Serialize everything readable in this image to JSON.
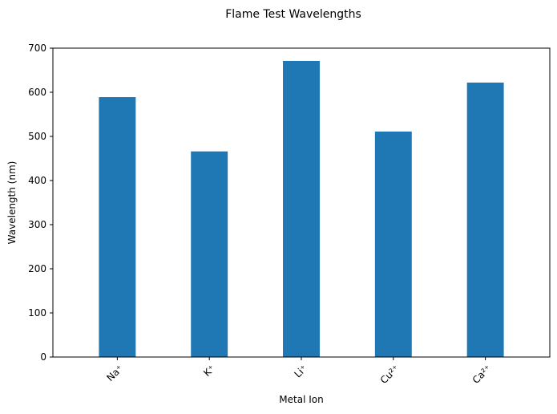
{
  "chart_data": {
    "type": "bar",
    "title": "Flame Test Wavelengths",
    "xlabel": "Metal Ion",
    "ylabel": "Wavelength (nm)",
    "categories": [
      "Na⁺",
      "K⁺",
      "Li⁺",
      "Cu²⁺",
      "Ca²⁺"
    ],
    "values": [
      589,
      466,
      671,
      511,
      622
    ],
    "ylim": [
      0,
      700
    ],
    "yticks": [
      0,
      100,
      200,
      300,
      400,
      500,
      600,
      700
    ],
    "bar_color": "#1f77b4",
    "grid": false,
    "legend": "none",
    "xtick_rotation": 45
  }
}
